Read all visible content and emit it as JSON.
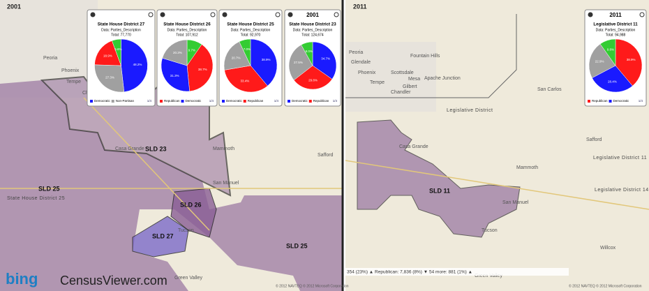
{
  "panels": [
    {
      "year": "2001",
      "labels": [
        "SLD 23",
        "SLD 25",
        "SLD 26",
        "SLD 27",
        "SLD 25",
        "State House District 25",
        "Peoria",
        "Phoenix",
        "Tempe",
        "Chandler",
        "Tucson",
        "San Manuel",
        "Mammoth",
        "Safford",
        "Green Valley",
        "Casa Grande"
      ]
    },
    {
      "year": "2011",
      "labels": [
        "SLD 11",
        "Legislative District 14",
        "Legislative District 11",
        "Legislative District",
        "Peoria",
        "Glendale",
        "Phoenix",
        "Scottsdale",
        "Tempe",
        "Mesa",
        "Gilbert",
        "Chandler",
        "Apache Junction",
        "Fountain Hills",
        "Casa Grande",
        "Tucson",
        "San Manuel",
        "Mammoth",
        "Safford",
        "San Carlos",
        "Willcox",
        "Green Valley"
      ]
    }
  ],
  "popups": [
    {
      "title": "State House District 27",
      "subtitle": "Data: Parties_Description",
      "total": "Total: 77,770",
      "values": [
        48.2,
        27.3,
        18.9,
        5.6
      ],
      "value_labels": [
        "48.2%",
        "27.3%",
        "18.9%",
        "5.6%"
      ],
      "colors": [
        "#1a1aff",
        "#a0a0a0",
        "#ff1a1a",
        "#33cc33"
      ],
      "legend": [
        "Democratic",
        "Non-Partisan"
      ],
      "pager": "1/4"
    },
    {
      "title": "State House District 26",
      "subtitle": "Data: Parties_Description",
      "total": "Total: 107,912",
      "values": [
        9.7,
        38.7,
        31.3,
        20.3
      ],
      "value_labels": [
        "9.7%",
        "38.7%",
        "31.3%",
        "20.3%"
      ],
      "colors": [
        "#33cc33",
        "#ff1a1a",
        "#1a1aff",
        "#a0a0a0"
      ],
      "legend": [
        "Republican",
        "Democratic"
      ],
      "pager": "1/4"
    },
    {
      "title": "State House District 25",
      "subtitle": "Data: Parties_Description",
      "total": "Total: 92,970",
      "values": [
        38.9,
        33.4,
        20.7,
        7.0
      ],
      "value_labels": [
        "38.9%",
        "33.4%",
        "20.7%",
        "7.0%"
      ],
      "colors": [
        "#1a1aff",
        "#ff1a1a",
        "#a0a0a0",
        "#33cc33"
      ],
      "legend": [
        "Democratic",
        "Republican"
      ],
      "pager": "1/4"
    },
    {
      "header": "2001",
      "title": "State House District 23",
      "subtitle": "Data: Parties_Description",
      "total": "Total: 124,674",
      "values": [
        34.7,
        29.8,
        27.5,
        8.0
      ],
      "value_labels": [
        "34.7%",
        "29.8%",
        "27.5%",
        "8.0%"
      ],
      "colors": [
        "#1a1aff",
        "#ff1a1a",
        "#a0a0a0",
        "#33cc33"
      ],
      "legend": [
        "Democratic",
        "Republican"
      ],
      "pager": "1/4"
    },
    {
      "header": "2011",
      "title": "Legislative District 11",
      "subtitle": "Data: Parties_Description",
      "total": "Total: 94,988",
      "values": [
        38.9,
        28.4,
        22.9,
        9.8
      ],
      "value_labels": [
        "38.9%",
        "28.4%",
        "22.9%",
        "9.8%"
      ],
      "colors": [
        "#ff1a1a",
        "#1a1aff",
        "#a0a0a0",
        "#33cc33"
      ],
      "legend": [
        "Republican",
        "Democratic"
      ],
      "pager": "1/4"
    }
  ],
  "branding": {
    "bing": "bing",
    "site": "CensusViewer.com"
  },
  "status": "354 (23%) ▲ Republican: 7,836 (8%) ▼ 54 more: 881 (1%) ▲",
  "copyright": [
    "© 2012 NAVTEQ © 2012 Microsoft Corporation",
    "© 2012 NAVTEQ © 2012 Microsoft Corporation"
  ]
}
